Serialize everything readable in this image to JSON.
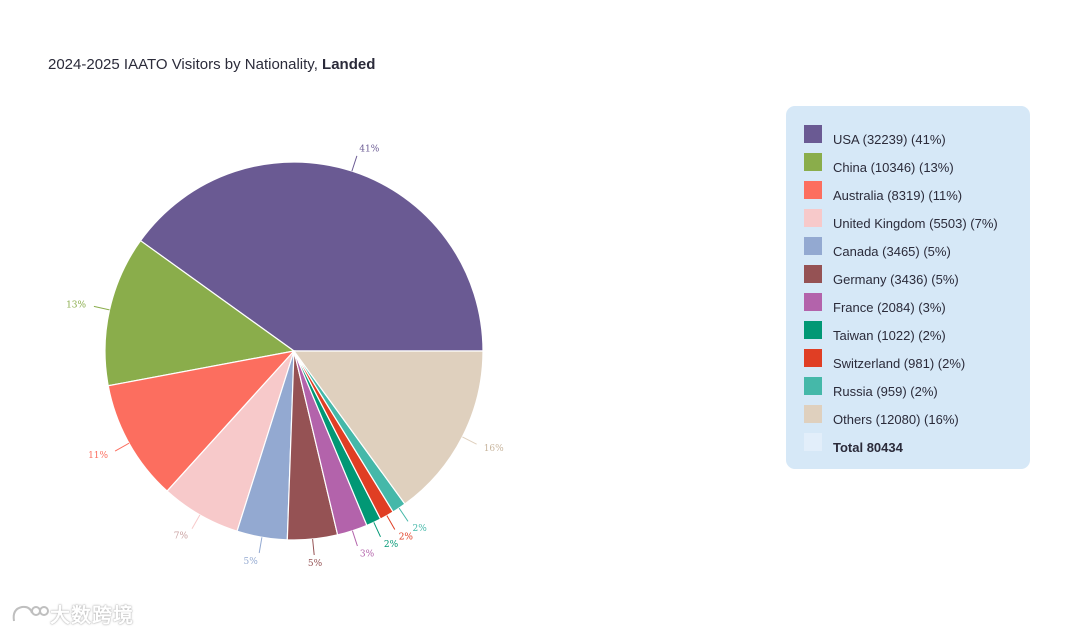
{
  "title": {
    "prefix": "2024-2025 IAATO Visitors by Nationality, ",
    "bold": "Landed"
  },
  "chart_data": {
    "type": "pie",
    "title": "2024-2025 IAATO Visitors by Nationality, Landed",
    "total_label": "Total 80434",
    "slices": [
      {
        "name": "USA",
        "value": 32239,
        "pct_label": "41%",
        "legend": "USA (32239) (41%)",
        "color": "#6a5a93"
      },
      {
        "name": "China",
        "value": 10346,
        "pct_label": "13%",
        "legend": "China (10346) (13%)",
        "color": "#8aad4b"
      },
      {
        "name": "Australia",
        "value": 8319,
        "pct_label": "11%",
        "legend": "Australia (8319) (11%)",
        "color": "#fc6e5f"
      },
      {
        "name": "United Kingdom",
        "value": 5503,
        "pct_label": "7%",
        "legend": "United Kingdom (5503) (7%)",
        "color": "#f7c9ca"
      },
      {
        "name": "Canada",
        "value": 3465,
        "pct_label": "5%",
        "legend": "Canada (3465) (5%)",
        "color": "#93a9d1"
      },
      {
        "name": "Germany",
        "value": 3436,
        "pct_label": "5%",
        "legend": "Germany (3436) (5%)",
        "color": "#955254"
      },
      {
        "name": "France",
        "value": 2084,
        "pct_label": "3%",
        "legend": "France (2084) (3%)",
        "color": "#b363ab"
      },
      {
        "name": "Taiwan",
        "value": 1022,
        "pct_label": "2%",
        "legend": "Taiwan (1022) (2%)",
        "color": "#019875"
      },
      {
        "name": "Switzerland",
        "value": 981,
        "pct_label": "2%",
        "legend": "Switzerland (981) (2%)",
        "color": "#e03e24"
      },
      {
        "name": "Russia",
        "value": 959,
        "pct_label": "2%",
        "legend": "Russia (959) (2%)",
        "color": "#45b8a9"
      },
      {
        "name": "Others",
        "value": 12080,
        "pct_label": "16%",
        "legend": "Others (12080) (16%)",
        "color": "#dfd0be"
      }
    ],
    "total_color": "#e2eefa",
    "legend_position": "right"
  },
  "watermark": {
    "text": "大数跨境"
  }
}
